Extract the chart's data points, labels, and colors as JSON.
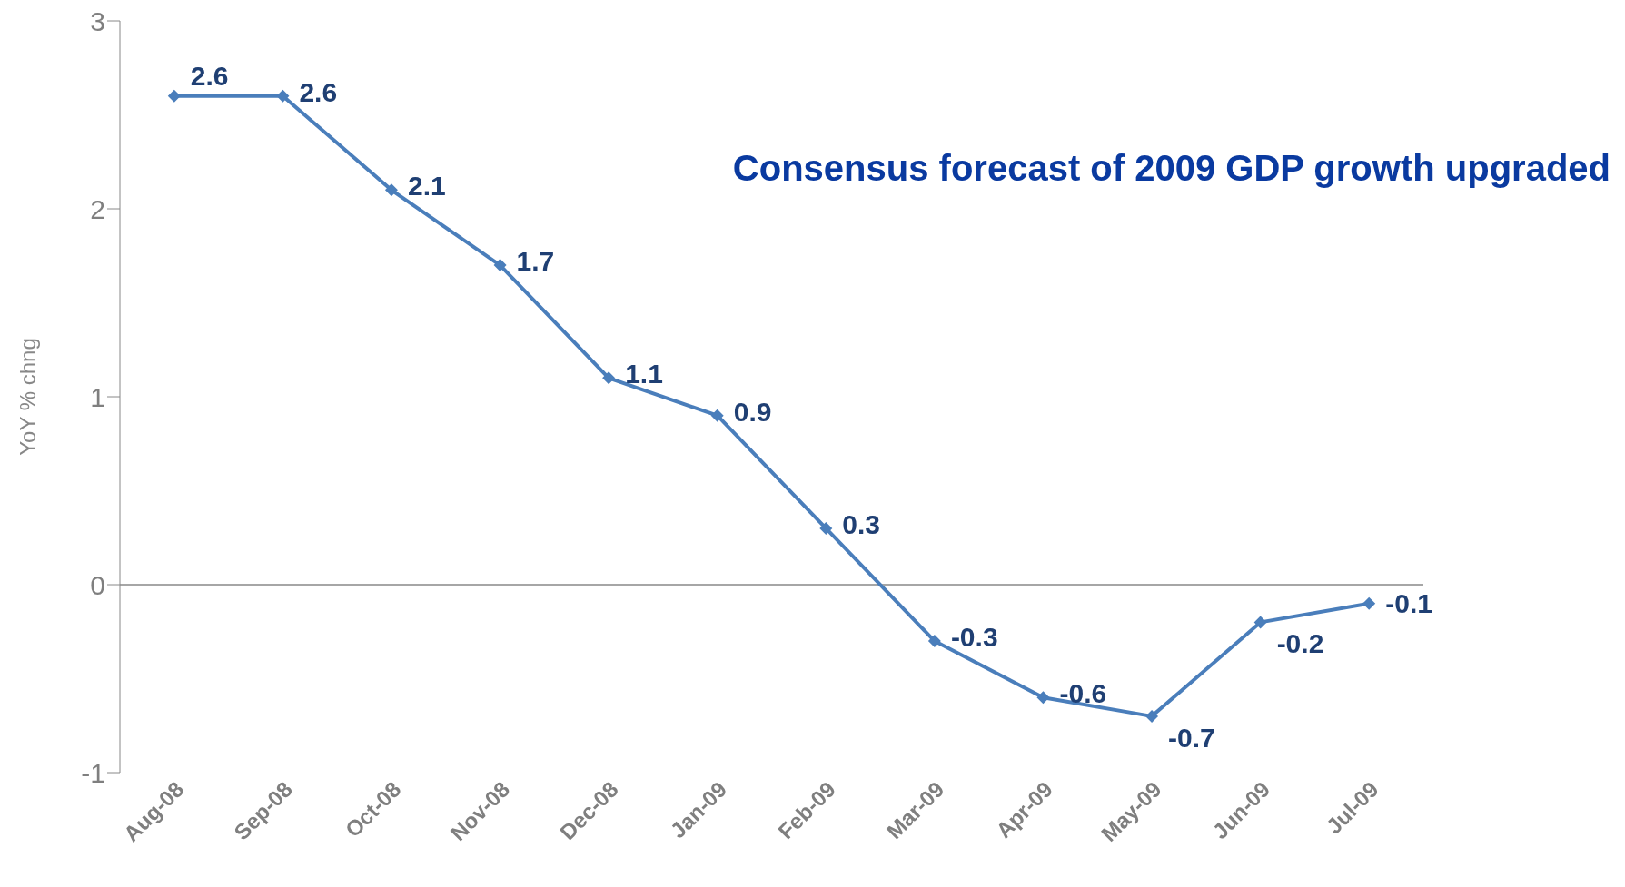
{
  "chart_data": {
    "type": "line",
    "title": "Consensus forecast of 2009 GDP growth upgraded",
    "ylabel": "YoY % chng",
    "categories": [
      "Aug-08",
      "Sep-08",
      "Oct-08",
      "Nov-08",
      "Dec-08",
      "Jan-09",
      "Feb-09",
      "Mar-09",
      "Apr-09",
      "May-09",
      "Jun-09",
      "Jul-09"
    ],
    "series": [
      {
        "color": "#4a7ebb",
        "values": [
          2.6,
          2.6,
          2.1,
          1.7,
          1.1,
          0.9,
          0.3,
          -0.3,
          -0.6,
          -0.7,
          -0.2,
          -0.1
        ]
      }
    ],
    "ylim": [
      -1,
      3
    ],
    "yticks": [
      -1,
      0,
      1,
      2,
      3
    ],
    "marker": "diamond",
    "line_style": "solid",
    "data_labels": true
  }
}
